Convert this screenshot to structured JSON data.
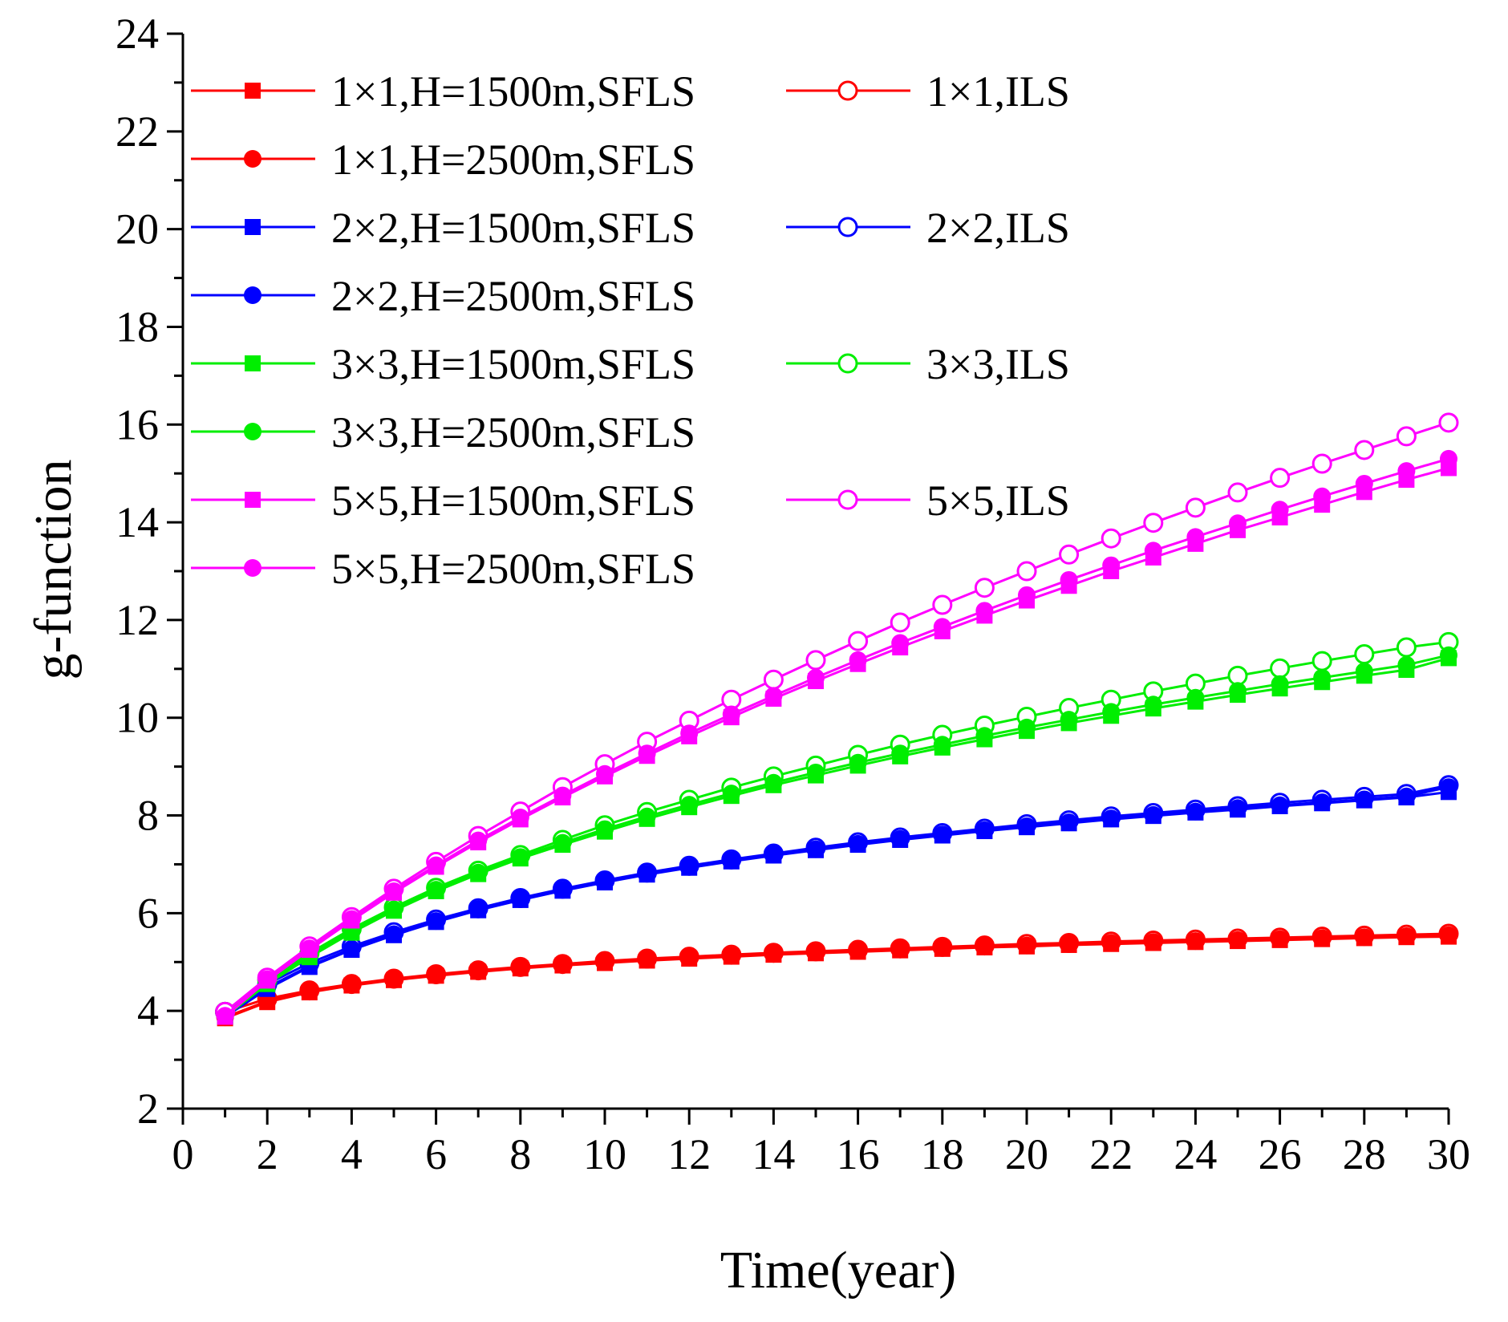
{
  "chart_data": {
    "type": "line",
    "title": "",
    "xlabel": "Time(year)",
    "ylabel": "g-function",
    "xlim": [
      0,
      30
    ],
    "ylim": [
      2,
      24
    ],
    "xticks": [
      0,
      2,
      4,
      6,
      8,
      10,
      12,
      14,
      16,
      18,
      20,
      22,
      24,
      26,
      28,
      30
    ],
    "yticks": [
      2,
      4,
      6,
      8,
      10,
      12,
      14,
      16,
      18,
      20,
      22,
      24
    ],
    "legend_position": "top-left",
    "grid": false,
    "x": [
      1,
      2,
      3,
      4,
      5,
      6,
      7,
      8,
      9,
      10,
      11,
      12,
      13,
      14,
      15,
      16,
      17,
      18,
      19,
      20,
      21,
      22,
      23,
      24,
      25,
      26,
      27,
      28,
      29,
      30
    ],
    "colors": {
      "1x1": "#ff0000",
      "2x2": "#0000ff",
      "3x3": "#00ee00",
      "5x5": "#ff00ff"
    },
    "series": [
      {
        "name": "1×1,H=1500m,SFLS",
        "color": "#ff0000",
        "marker": "square",
        "values": [
          3.85,
          4.18,
          4.38,
          4.52,
          4.63,
          4.72,
          4.8,
          4.87,
          4.93,
          4.98,
          5.03,
          5.07,
          5.11,
          5.15,
          5.18,
          5.21,
          5.24,
          5.27,
          5.3,
          5.32,
          5.35,
          5.37,
          5.39,
          5.41,
          5.43,
          5.45,
          5.47,
          5.49,
          5.51,
          5.52
        ]
      },
      {
        "name": "1×1,ILS",
        "color": "#ff0000",
        "marker": "open-circle",
        "values": [
          3.98,
          4.25,
          4.42,
          4.55,
          4.66,
          4.75,
          4.83,
          4.9,
          4.96,
          5.02,
          5.07,
          5.11,
          5.15,
          5.19,
          5.22,
          5.25,
          5.28,
          5.31,
          5.34,
          5.37,
          5.39,
          5.42,
          5.44,
          5.46,
          5.48,
          5.5,
          5.52,
          5.54,
          5.56,
          5.58
        ]
      },
      {
        "name": "1×1,H=2500m,SFLS",
        "color": "#ff0000",
        "marker": "filled-circle",
        "values": [
          3.87,
          4.2,
          4.4,
          4.54,
          4.65,
          4.74,
          4.82,
          4.89,
          4.95,
          5.0,
          5.05,
          5.09,
          5.13,
          5.17,
          5.2,
          5.23,
          5.26,
          5.29,
          5.32,
          5.34,
          5.37,
          5.39,
          5.41,
          5.43,
          5.45,
          5.47,
          5.49,
          5.51,
          5.53,
          5.55
        ]
      },
      {
        "name": "2×2,H=1500m,SFLS",
        "color": "#0000ff",
        "marker": "square",
        "values": [
          3.88,
          4.45,
          4.9,
          5.25,
          5.55,
          5.82,
          6.06,
          6.27,
          6.46,
          6.63,
          6.79,
          6.93,
          7.06,
          7.18,
          7.29,
          7.4,
          7.5,
          7.59,
          7.68,
          7.76,
          7.84,
          7.92,
          7.99,
          8.06,
          8.12,
          8.19,
          8.25,
          8.31,
          8.37,
          8.48
        ]
      },
      {
        "name": "2×2,ILS",
        "color": "#0000ff",
        "marker": "open-circle",
        "values": [
          3.98,
          4.55,
          4.98,
          5.32,
          5.61,
          5.87,
          6.1,
          6.31,
          6.5,
          6.67,
          6.83,
          6.97,
          7.1,
          7.22,
          7.34,
          7.45,
          7.55,
          7.64,
          7.73,
          7.82,
          7.9,
          7.98,
          8.05,
          8.12,
          8.19,
          8.26,
          8.32,
          8.38,
          8.44,
          8.62
        ]
      },
      {
        "name": "2×2,H=2500m,SFLS",
        "color": "#0000ff",
        "marker": "filled-circle",
        "values": [
          3.9,
          4.48,
          4.92,
          5.27,
          5.57,
          5.84,
          6.08,
          6.29,
          6.48,
          6.65,
          6.81,
          6.95,
          7.08,
          7.2,
          7.31,
          7.42,
          7.52,
          7.61,
          7.7,
          7.78,
          7.86,
          7.94,
          8.01,
          8.08,
          8.15,
          8.21,
          8.27,
          8.33,
          8.39,
          8.58
        ]
      },
      {
        "name": "3×3,H=1500m,SFLS",
        "color": "#00ee00",
        "marker": "square",
        "values": [
          3.88,
          4.55,
          5.1,
          5.6,
          6.05,
          6.45,
          6.8,
          7.12,
          7.4,
          7.67,
          7.93,
          8.17,
          8.4,
          8.62,
          8.82,
          9.02,
          9.21,
          9.39,
          9.56,
          9.73,
          9.89,
          10.04,
          10.19,
          10.33,
          10.47,
          10.6,
          10.73,
          10.86,
          10.98,
          11.22
        ]
      },
      {
        "name": "3×3,ILS",
        "color": "#00ee00",
        "marker": "open-circle",
        "values": [
          3.98,
          4.63,
          5.18,
          5.68,
          6.12,
          6.52,
          6.87,
          7.19,
          7.5,
          7.8,
          8.07,
          8.32,
          8.57,
          8.8,
          9.02,
          9.24,
          9.45,
          9.65,
          9.84,
          10.02,
          10.2,
          10.37,
          10.54,
          10.7,
          10.86,
          11.01,
          11.16,
          11.3,
          11.44,
          11.55
        ]
      },
      {
        "name": "3×3,H=2500m,SFLS",
        "color": "#00ee00",
        "marker": "filled-circle",
        "values": [
          3.9,
          4.58,
          5.13,
          5.63,
          6.08,
          6.48,
          6.83,
          7.15,
          7.44,
          7.72,
          7.98,
          8.22,
          8.45,
          8.67,
          8.88,
          9.08,
          9.27,
          9.45,
          9.63,
          9.8,
          9.96,
          10.12,
          10.27,
          10.41,
          10.55,
          10.69,
          10.82,
          10.95,
          11.08,
          11.28
        ]
      },
      {
        "name": "5×5,H=1500m,SFLS",
        "color": "#ff00ff",
        "marker": "square",
        "values": [
          3.88,
          4.62,
          5.25,
          5.85,
          6.42,
          6.95,
          7.45,
          7.92,
          8.37,
          8.8,
          9.22,
          9.62,
          10.01,
          10.39,
          10.75,
          11.1,
          11.44,
          11.77,
          12.09,
          12.4,
          12.7,
          13.0,
          13.28,
          13.56,
          13.84,
          14.1,
          14.36,
          14.62,
          14.87,
          15.11
        ]
      },
      {
        "name": "5×5,ILS",
        "color": "#ff00ff",
        "marker": "open-circle",
        "values": [
          3.98,
          4.68,
          5.32,
          5.92,
          6.5,
          7.05,
          7.58,
          8.08,
          8.58,
          9.05,
          9.51,
          9.94,
          10.37,
          10.78,
          11.18,
          11.57,
          11.95,
          12.31,
          12.66,
          13.0,
          13.34,
          13.67,
          13.99,
          14.3,
          14.61,
          14.91,
          15.2,
          15.48,
          15.76,
          16.04
        ]
      },
      {
        "name": "5×5,H=2500m,SFLS",
        "color": "#ff00ff",
        "marker": "filled-circle",
        "values": [
          3.9,
          4.65,
          5.28,
          5.88,
          6.45,
          6.98,
          7.49,
          7.96,
          8.41,
          8.85,
          9.27,
          9.68,
          10.07,
          10.45,
          10.82,
          11.18,
          11.53,
          11.86,
          12.19,
          12.51,
          12.82,
          13.12,
          13.42,
          13.7,
          13.98,
          14.26,
          14.53,
          14.79,
          15.05,
          15.3
        ]
      }
    ],
    "legend": {
      "left": [
        "1×1,H=1500m,SFLS",
        "1×1,H=2500m,SFLS",
        "2×2,H=1500m,SFLS",
        "2×2,H=2500m,SFLS",
        "3×3,H=1500m,SFLS",
        "3×3,H=2500m,SFLS",
        "5×5,H=1500m,SFLS",
        "5×5,H=2500m,SFLS"
      ],
      "right": [
        "1×1,ILS",
        "2×2,ILS",
        "3×3,ILS",
        "5×5,ILS"
      ]
    }
  }
}
